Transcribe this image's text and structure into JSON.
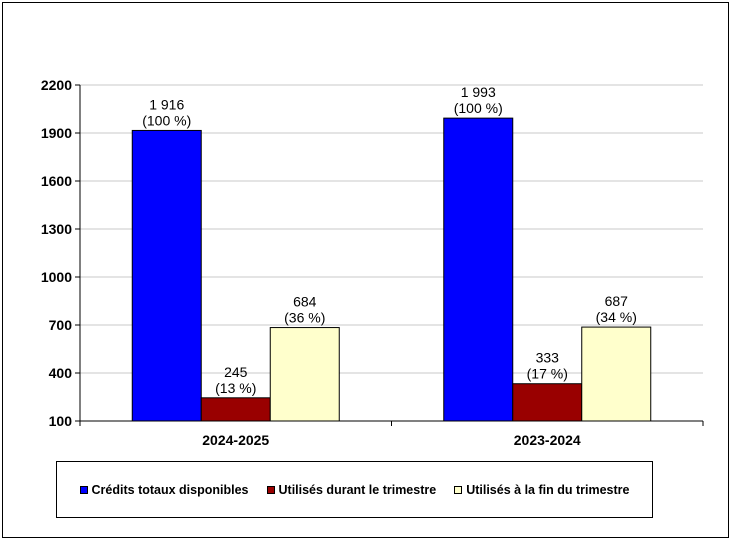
{
  "chart_data": {
    "type": "bar",
    "categories": [
      "2024-2025",
      "2023-2024"
    ],
    "series": [
      {
        "name": "Crédits totaux disponibles",
        "values": [
          1916,
          1993
        ],
        "labels": [
          "1 916",
          "1 993"
        ],
        "pct": [
          "(100 %)",
          "(100 %)"
        ],
        "color": "#0000ff"
      },
      {
        "name": "Utilisés durant le trimestre",
        "values": [
          245,
          333
        ],
        "labels": [
          "245",
          "333"
        ],
        "pct": [
          "(13 %)",
          "(17 %)"
        ],
        "color": "#990000"
      },
      {
        "name": "Utilisés à la fin du trimestre",
        "values": [
          684,
          687
        ],
        "labels": [
          "684",
          "687"
        ],
        "pct": [
          "(36 %)",
          "(34 %)"
        ],
        "color": "#ffffcc"
      }
    ],
    "ylim": [
      100,
      2200
    ],
    "yticks": [
      "100",
      "400",
      "700",
      "1000",
      "1300",
      "1600",
      "1900",
      "2200"
    ],
    "grid": true,
    "legend_position": "bottom"
  }
}
